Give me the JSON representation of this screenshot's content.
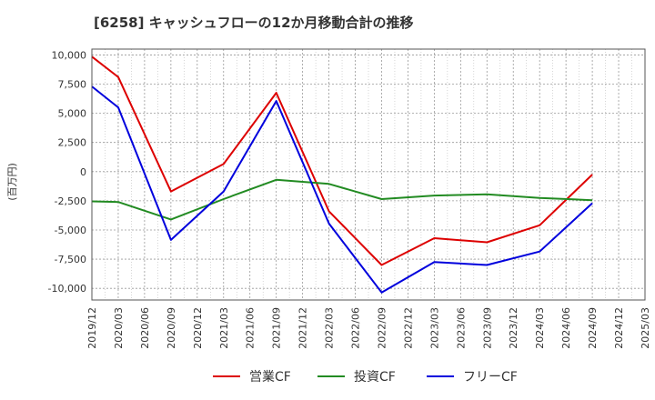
{
  "chart_data": {
    "type": "line",
    "title": "[6258]  キャッシュフローの12か月移動合計の推移",
    "ylabel": "(百万円)",
    "xlabel": "",
    "ylim": [
      -11000,
      10500
    ],
    "y_ticks": [
      10000,
      7500,
      5000,
      2500,
      0,
      -2500,
      -5000,
      -7500,
      -10000
    ],
    "y_tick_labels": [
      "10,000",
      "7,500",
      "5,000",
      "2,500",
      "0",
      "-2,500",
      "-5,000",
      "-7,500",
      "-10,000"
    ],
    "categories": [
      "2019/12",
      "2020/03",
      "2020/06",
      "2020/09",
      "2020/12",
      "2021/03",
      "2021/06",
      "2021/09",
      "2021/12",
      "2022/03",
      "2022/06",
      "2022/09",
      "2022/12",
      "2023/03",
      "2023/06",
      "2023/09",
      "2023/12",
      "2024/03",
      "2024/06",
      "2024/09",
      "2024/12",
      "2025/03"
    ],
    "grid": true,
    "legend_position": "bottom",
    "series": [
      {
        "name": "営業CF",
        "color": "#dd0000",
        "values": [
          9850,
          8100,
          null,
          -1700,
          null,
          650,
          null,
          6750,
          null,
          -3400,
          null,
          -8000,
          null,
          -5700,
          null,
          -6050,
          null,
          -4600,
          null,
          -250,
          null,
          null
        ]
      },
      {
        "name": "投資CF",
        "color": "#228b22",
        "values": [
          -2550,
          -2600,
          null,
          -4100,
          null,
          -2350,
          null,
          -700,
          null,
          -1050,
          null,
          -2350,
          null,
          -2050,
          null,
          -1950,
          null,
          -2250,
          null,
          -2450,
          null,
          null
        ]
      },
      {
        "name": "フリーCF",
        "color": "#0000dd",
        "values": [
          7300,
          5500,
          null,
          -5850,
          null,
          -1700,
          null,
          6050,
          null,
          -4450,
          null,
          -10350,
          null,
          -7750,
          null,
          -8000,
          null,
          -6850,
          null,
          -2700,
          null,
          null
        ]
      }
    ]
  }
}
